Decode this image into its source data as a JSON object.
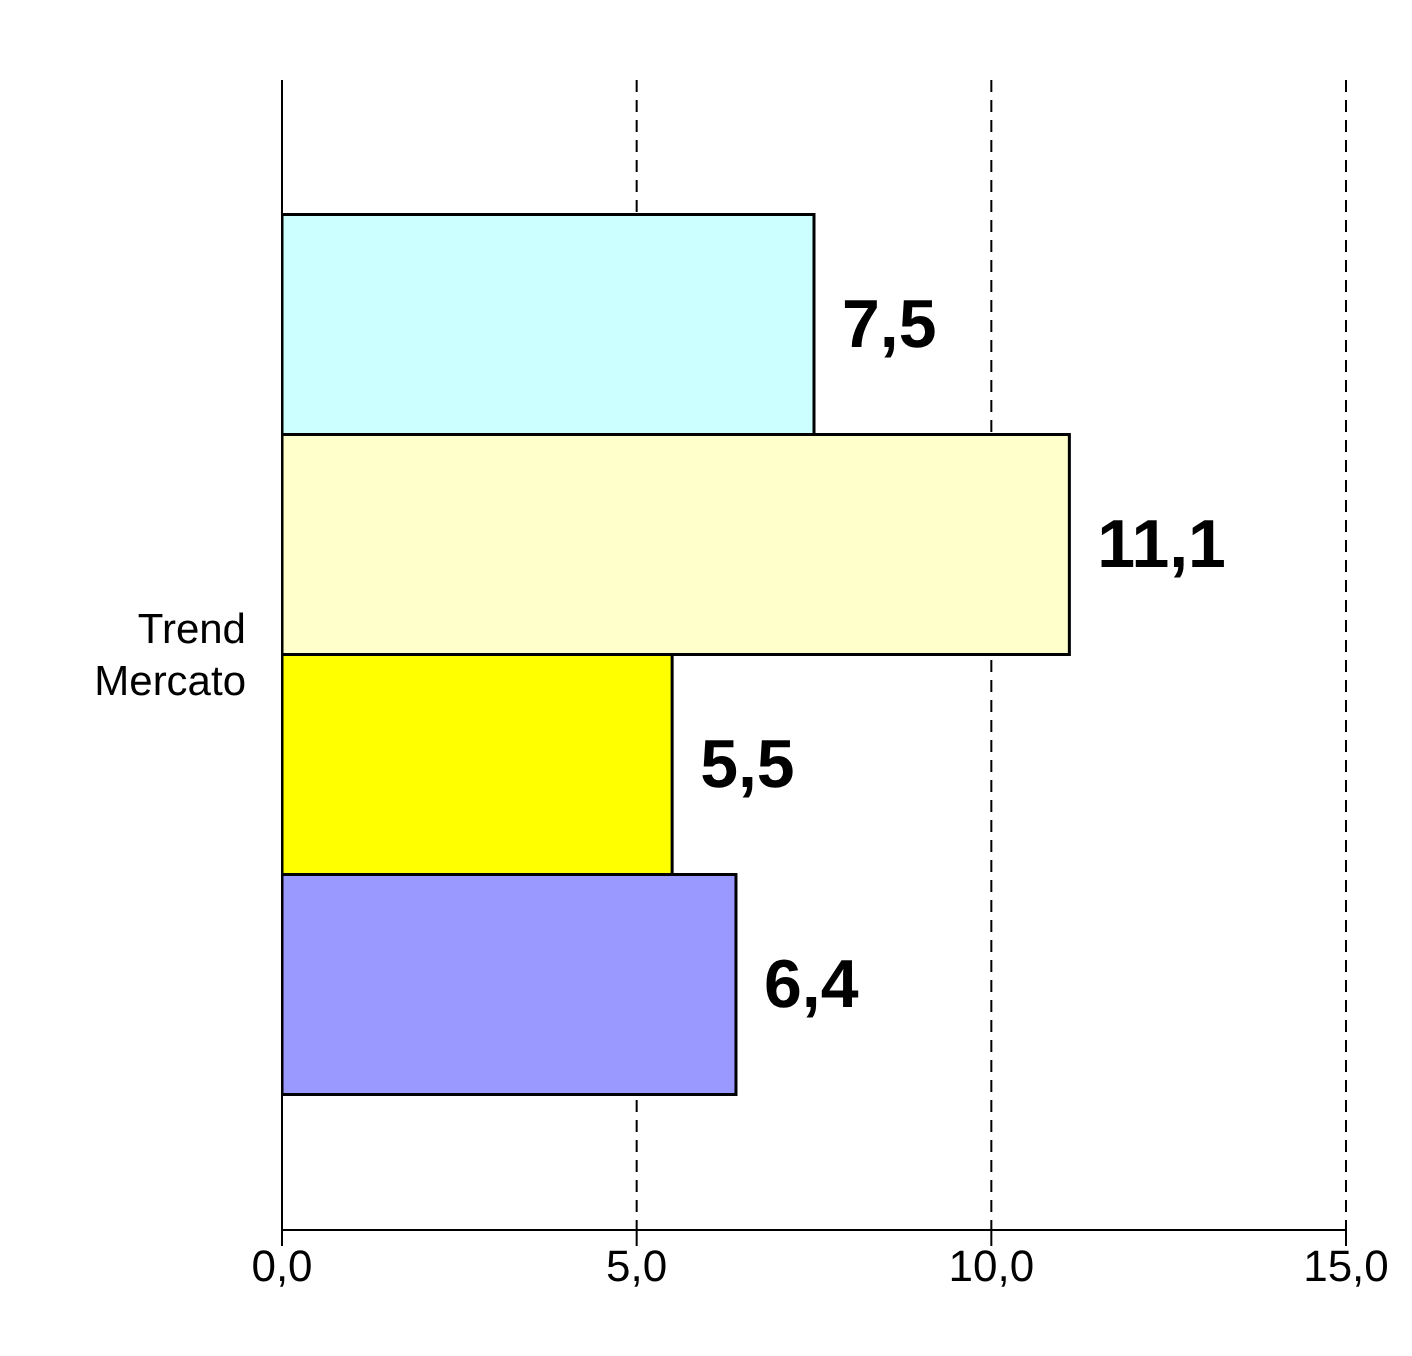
{
  "chart_data": {
    "type": "bar",
    "orientation": "horizontal",
    "categories": [
      "Trend Mercato"
    ],
    "series": [
      {
        "color": "#ccffff",
        "values": [
          7.5
        ],
        "value_labels": [
          "7,5"
        ]
      },
      {
        "color": "#ffffcc",
        "values": [
          11.1
        ],
        "value_labels": [
          "11,1"
        ]
      },
      {
        "color": "#ffff00",
        "values": [
          5.5
        ],
        "value_labels": [
          "5,5"
        ]
      },
      {
        "color": "#9999ff",
        "values": [
          6.4
        ],
        "value_labels": [
          "6,4"
        ]
      }
    ],
    "xlim": [
      0,
      15
    ],
    "xticks": [
      {
        "value": 0,
        "label": "0,0"
      },
      {
        "value": 5,
        "label": "5,0"
      },
      {
        "value": 10,
        "label": "10,0"
      },
      {
        "value": 15,
        "label": "15,0"
      }
    ],
    "grid": "x",
    "legend": false
  }
}
